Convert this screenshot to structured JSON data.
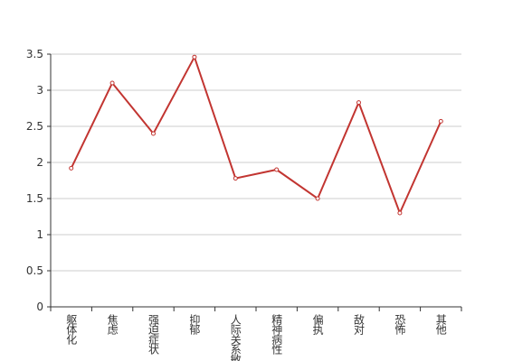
{
  "chart_data": {
    "type": "line",
    "categories": [
      "躯体化",
      "焦虑",
      "强迫症状",
      "抑郁",
      "人际关系敏感",
      "精神病性",
      "偏执",
      "敌对",
      "恐怖",
      "其他"
    ],
    "values": [
      1.92,
      3.1,
      2.4,
      3.46,
      1.78,
      1.9,
      1.5,
      2.83,
      1.3,
      2.57
    ],
    "color": "#c23531",
    "ylim": [
      0,
      3.5
    ],
    "yticks": [
      0,
      0.5,
      1,
      1.5,
      2,
      2.5,
      3,
      3.5
    ],
    "grid": true
  }
}
